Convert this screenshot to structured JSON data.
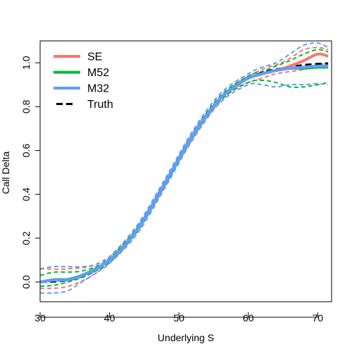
{
  "chart_data": {
    "type": "line",
    "title": "",
    "xlabel": "Underlying S",
    "ylabel": "Call Delta",
    "xlim": [
      30,
      72
    ],
    "ylim": [
      -0.09,
      1.1
    ],
    "x_ticks": [
      30,
      40,
      50,
      60,
      70
    ],
    "x_tick_labels": [
      "30",
      "40",
      "50",
      "60",
      "70"
    ],
    "y_ticks": [
      0.0,
      0.2,
      0.4,
      0.6,
      0.8,
      1.0
    ],
    "y_tick_labels": [
      "0.0",
      "0.2",
      "0.4",
      "0.6",
      "0.8",
      "1.0"
    ],
    "grid": false,
    "legend": {
      "position": "top-left",
      "entries": [
        {
          "label": "SE",
          "color": "#F8766D",
          "style": "solid"
        },
        {
          "label": "M52",
          "color": "#00BA38",
          "style": "solid"
        },
        {
          "label": "M32",
          "color": "#619CFF",
          "style": "solid"
        },
        {
          "label": "Truth",
          "color": "#000000",
          "style": "dashed"
        }
      ]
    },
    "series": [
      {
        "name": "Truth",
        "color": "#000000",
        "style": "dashed",
        "x": [
          30,
          32,
          34,
          36,
          38,
          40,
          42,
          44,
          46,
          48,
          50,
          52,
          54,
          56,
          58,
          60,
          62,
          64,
          66,
          68,
          70,
          71.5
        ],
        "y": [
          0.0,
          0.002,
          0.008,
          0.025,
          0.055,
          0.1,
          0.16,
          0.24,
          0.34,
          0.45,
          0.56,
          0.67,
          0.76,
          0.84,
          0.89,
          0.93,
          0.955,
          0.97,
          0.98,
          0.99,
          0.995,
          0.997
        ]
      },
      {
        "name": "SE",
        "color": "#F8766D",
        "style": "solid",
        "x": [
          30,
          32,
          34,
          36,
          38,
          40,
          42,
          44,
          46,
          48,
          50,
          52,
          54,
          56,
          58,
          60,
          62,
          64,
          66,
          68,
          70,
          71.5
        ],
        "y": [
          0.0,
          0.01,
          0.012,
          0.03,
          0.06,
          0.1,
          0.16,
          0.24,
          0.34,
          0.45,
          0.56,
          0.67,
          0.76,
          0.84,
          0.89,
          0.93,
          0.95,
          0.965,
          0.985,
          1.01,
          1.04,
          1.03
        ]
      },
      {
        "name": "M52",
        "color": "#00BA38",
        "style": "solid",
        "x": [
          30,
          32,
          34,
          36,
          38,
          40,
          42,
          44,
          46,
          48,
          50,
          52,
          54,
          56,
          58,
          60,
          62,
          64,
          66,
          68,
          70,
          71.5
        ],
        "y": [
          0.0,
          0.01,
          0.012,
          0.03,
          0.06,
          0.1,
          0.16,
          0.24,
          0.34,
          0.45,
          0.56,
          0.67,
          0.76,
          0.84,
          0.89,
          0.93,
          0.95,
          0.965,
          0.975,
          0.975,
          0.98,
          0.98
        ]
      },
      {
        "name": "M32",
        "color": "#619CFF",
        "style": "solid",
        "x": [
          30,
          32,
          34,
          36,
          38,
          40,
          42,
          44,
          46,
          48,
          50,
          52,
          54,
          56,
          58,
          60,
          62,
          64,
          66,
          68,
          70,
          71.5
        ],
        "y": [
          0.0,
          0.008,
          0.01,
          0.028,
          0.058,
          0.1,
          0.16,
          0.24,
          0.34,
          0.45,
          0.56,
          0.67,
          0.76,
          0.84,
          0.89,
          0.93,
          0.95,
          0.965,
          0.975,
          0.98,
          0.985,
          0.985
        ]
      },
      {
        "name": "SE upper",
        "color": "#F8766D",
        "style": "dashed",
        "x": [
          30,
          34,
          38,
          42,
          46,
          50,
          54,
          58,
          62,
          64,
          66,
          68,
          70,
          71.5
        ],
        "y": [
          0.06,
          0.06,
          0.08,
          0.17,
          0.35,
          0.57,
          0.77,
          0.9,
          0.97,
          0.99,
          1.02,
          1.06,
          1.07,
          1.06
        ]
      },
      {
        "name": "SE lower",
        "color": "#F8766D",
        "style": "dashed",
        "x": [
          30,
          34,
          38,
          42,
          46,
          50,
          54,
          58,
          62,
          64,
          66,
          68,
          70,
          71.5
        ],
        "y": [
          -0.03,
          -0.02,
          0.04,
          0.15,
          0.33,
          0.55,
          0.75,
          0.88,
          0.93,
          0.95,
          0.96,
          0.97,
          0.99,
          1.0
        ]
      },
      {
        "name": "M52 upper",
        "color": "#00BA38",
        "style": "dashed",
        "x": [
          30,
          32,
          34,
          36,
          38,
          40,
          44,
          48,
          52,
          56,
          60,
          62,
          64,
          66,
          68,
          70,
          71.5
        ],
        "y": [
          0.03,
          0.045,
          0.045,
          0.05,
          0.07,
          0.11,
          0.25,
          0.46,
          0.68,
          0.85,
          0.94,
          0.96,
          0.985,
          1.01,
          1.04,
          1.06,
          1.05
        ]
      },
      {
        "name": "M52 lower",
        "color": "#00BA38",
        "style": "dashed",
        "x": [
          30,
          32,
          34,
          36,
          38,
          40,
          44,
          48,
          52,
          56,
          60,
          62,
          64,
          66,
          68,
          70,
          71.5
        ],
        "y": [
          -0.02,
          -0.015,
          0.0,
          0.02,
          0.05,
          0.09,
          0.23,
          0.44,
          0.66,
          0.83,
          0.91,
          0.92,
          0.91,
          0.89,
          0.89,
          0.9,
          0.91
        ]
      },
      {
        "name": "M32 upper",
        "color": "#619CFF",
        "style": "dashed",
        "x": [
          30,
          32,
          34,
          36,
          38,
          40,
          44,
          48,
          52,
          56,
          60,
          62,
          64,
          66,
          68,
          70,
          71.5
        ],
        "y": [
          0.06,
          0.07,
          0.07,
          0.07,
          0.08,
          0.115,
          0.26,
          0.47,
          0.69,
          0.86,
          0.95,
          0.98,
          1.0,
          1.04,
          1.08,
          1.09,
          1.07
        ]
      },
      {
        "name": "M32 lower",
        "color": "#619CFF",
        "style": "dashed",
        "x": [
          30,
          32,
          34,
          36,
          38,
          40,
          44,
          48,
          52,
          56,
          60,
          62,
          64,
          66,
          68,
          70,
          71.5
        ],
        "y": [
          -0.05,
          -0.05,
          -0.04,
          0.0,
          0.04,
          0.085,
          0.22,
          0.43,
          0.65,
          0.82,
          0.9,
          0.9,
          0.89,
          0.9,
          0.9,
          0.905,
          0.9
        ]
      }
    ]
  }
}
